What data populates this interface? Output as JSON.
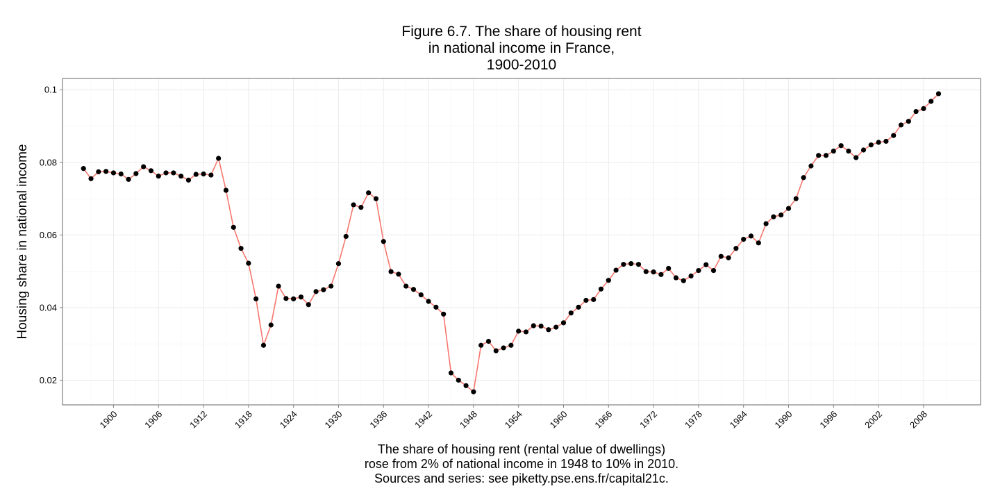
{
  "chart_data": {
    "type": "line",
    "title_lines": [
      "Figure 6.7. The share of housing rent",
      "in national income in France,",
      "1900-2010"
    ],
    "ylabel": "Housing share in national income",
    "caption_lines": [
      "The share of housing rent (rental value of dwellings)",
      "rose from 2% of national income in 1948 to 10% in 2010.",
      "Sources and series: see piketty.pse.ens.fr/capital21c."
    ],
    "x_ticks": [
      1900,
      1906,
      1912,
      1918,
      1924,
      1930,
      1936,
      1942,
      1948,
      1954,
      1960,
      1966,
      1972,
      1978,
      1984,
      1990,
      1996,
      2002,
      2008
    ],
    "y_ticks": [
      0.02,
      0.04,
      0.06,
      0.08,
      0.1
    ],
    "y_tick_labels": [
      "0.02",
      "0.04",
      "0.06",
      "0.08",
      "0.1"
    ],
    "xlim": [
      1893.2,
      2015.6
    ],
    "ylim": [
      0.0132,
      0.1031
    ],
    "grid": true,
    "line_color": "#F8766D",
    "point_color": "#000000",
    "panel_border_color": "#7f7f7f",
    "grid_major_color": "#ebebeb",
    "grid_minor_color": "#f5f5f5",
    "x": [
      1896,
      1897,
      1898,
      1899,
      1900,
      1901,
      1902,
      1903,
      1904,
      1905,
      1906,
      1907,
      1908,
      1909,
      1910,
      1911,
      1912,
      1913,
      1914,
      1915,
      1916,
      1917,
      1918,
      1919,
      1920,
      1921,
      1922,
      1923,
      1924,
      1925,
      1926,
      1927,
      1928,
      1929,
      1930,
      1931,
      1932,
      1933,
      1934,
      1935,
      1936,
      1937,
      1938,
      1939,
      1940,
      1941,
      1942,
      1943,
      1944,
      1945,
      1946,
      1947,
      1948,
      1949,
      1950,
      1951,
      1952,
      1953,
      1954,
      1955,
      1956,
      1957,
      1958,
      1959,
      1960,
      1961,
      1962,
      1963,
      1964,
      1965,
      1966,
      1967,
      1968,
      1969,
      1970,
      1971,
      1972,
      1973,
      1974,
      1975,
      1976,
      1977,
      1978,
      1979,
      1980,
      1981,
      1982,
      1983,
      1984,
      1985,
      1986,
      1987,
      1988,
      1989,
      1990,
      1991,
      1992,
      1993,
      1994,
      1995,
      1996,
      1997,
      1998,
      1999,
      2000,
      2001,
      2002,
      2003,
      2004,
      2005,
      2006,
      2007,
      2008,
      2009,
      2010
    ],
    "y": [
      0.0783,
      0.0755,
      0.0774,
      0.0775,
      0.0771,
      0.0768,
      0.0753,
      0.0769,
      0.0788,
      0.0777,
      0.0762,
      0.0771,
      0.0771,
      0.0762,
      0.0751,
      0.0767,
      0.0768,
      0.0765,
      0.0811,
      0.0723,
      0.0621,
      0.0563,
      0.0522,
      0.0424,
      0.0296,
      0.0352,
      0.0459,
      0.0425,
      0.0424,
      0.0429,
      0.0408,
      0.0444,
      0.0449,
      0.0459,
      0.0521,
      0.0596,
      0.0683,
      0.0676,
      0.0716,
      0.07,
      0.0582,
      0.0499,
      0.0492,
      0.0459,
      0.045,
      0.0435,
      0.0417,
      0.0401,
      0.0382,
      0.022,
      0.02,
      0.0185,
      0.0168,
      0.0296,
      0.0307,
      0.0281,
      0.0289,
      0.0296,
      0.0335,
      0.0333,
      0.035,
      0.0349,
      0.0339,
      0.0346,
      0.0358,
      0.0385,
      0.0401,
      0.042,
      0.0422,
      0.0451,
      0.0475,
      0.0503,
      0.0519,
      0.0521,
      0.0519,
      0.0499,
      0.0498,
      0.0491,
      0.0508,
      0.0482,
      0.0474,
      0.0487,
      0.0502,
      0.0518,
      0.0502,
      0.0541,
      0.0537,
      0.0563,
      0.0588,
      0.0597,
      0.0578,
      0.0631,
      0.065,
      0.0655,
      0.0673,
      0.07,
      0.0758,
      0.079,
      0.0819,
      0.0819,
      0.0831,
      0.0846,
      0.0831,
      0.0813,
      0.0834,
      0.0848,
      0.0855,
      0.0858,
      0.0874,
      0.0903,
      0.0913,
      0.094,
      0.0948,
      0.0968,
      0.0989
    ]
  }
}
